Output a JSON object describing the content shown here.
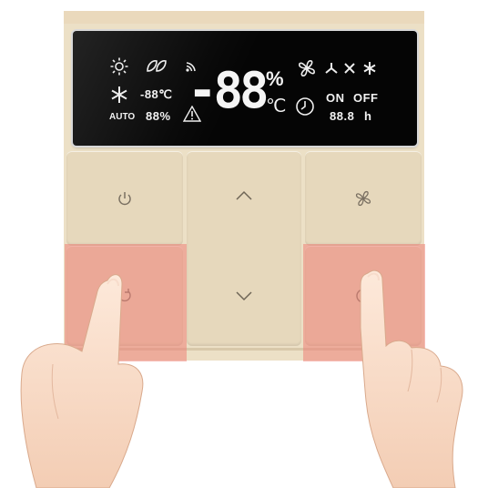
{
  "display": {
    "left_icons": [
      "sun-icon",
      "leaf-icon",
      "wifi-icon"
    ],
    "snow_icon": "snowflake-icon",
    "temp_small": "-88℃",
    "auto_label": "AUTO",
    "humidity_small": "88%",
    "warning_icon": "warning-icon",
    "big_value": "-88",
    "big_unit_percent": "%",
    "big_unit_celsius": "℃",
    "mode_icons": [
      "fan-icon",
      "fan-low-icon",
      "cool-icon",
      "snowflake-small-icon"
    ],
    "clock_icon": "clock-icon",
    "on_label": "ON",
    "off_label": "OFF",
    "hours_value": "88.8",
    "hours_unit": "h"
  },
  "buttons": {
    "power": {
      "icon": "power-icon"
    },
    "up": {
      "icon": "chevron-up-icon"
    },
    "down": {
      "icon": "chevron-down-icon"
    },
    "fan": {
      "icon": "fan-icon"
    },
    "mode": {
      "icon": "circular-arrow-icon"
    },
    "timer": {
      "icon": "clock-icon"
    }
  },
  "colors": {
    "panel": "#ece0c6",
    "button": "#e6d8bc",
    "display_bg": "#050505",
    "highlight": "#ee8278"
  }
}
